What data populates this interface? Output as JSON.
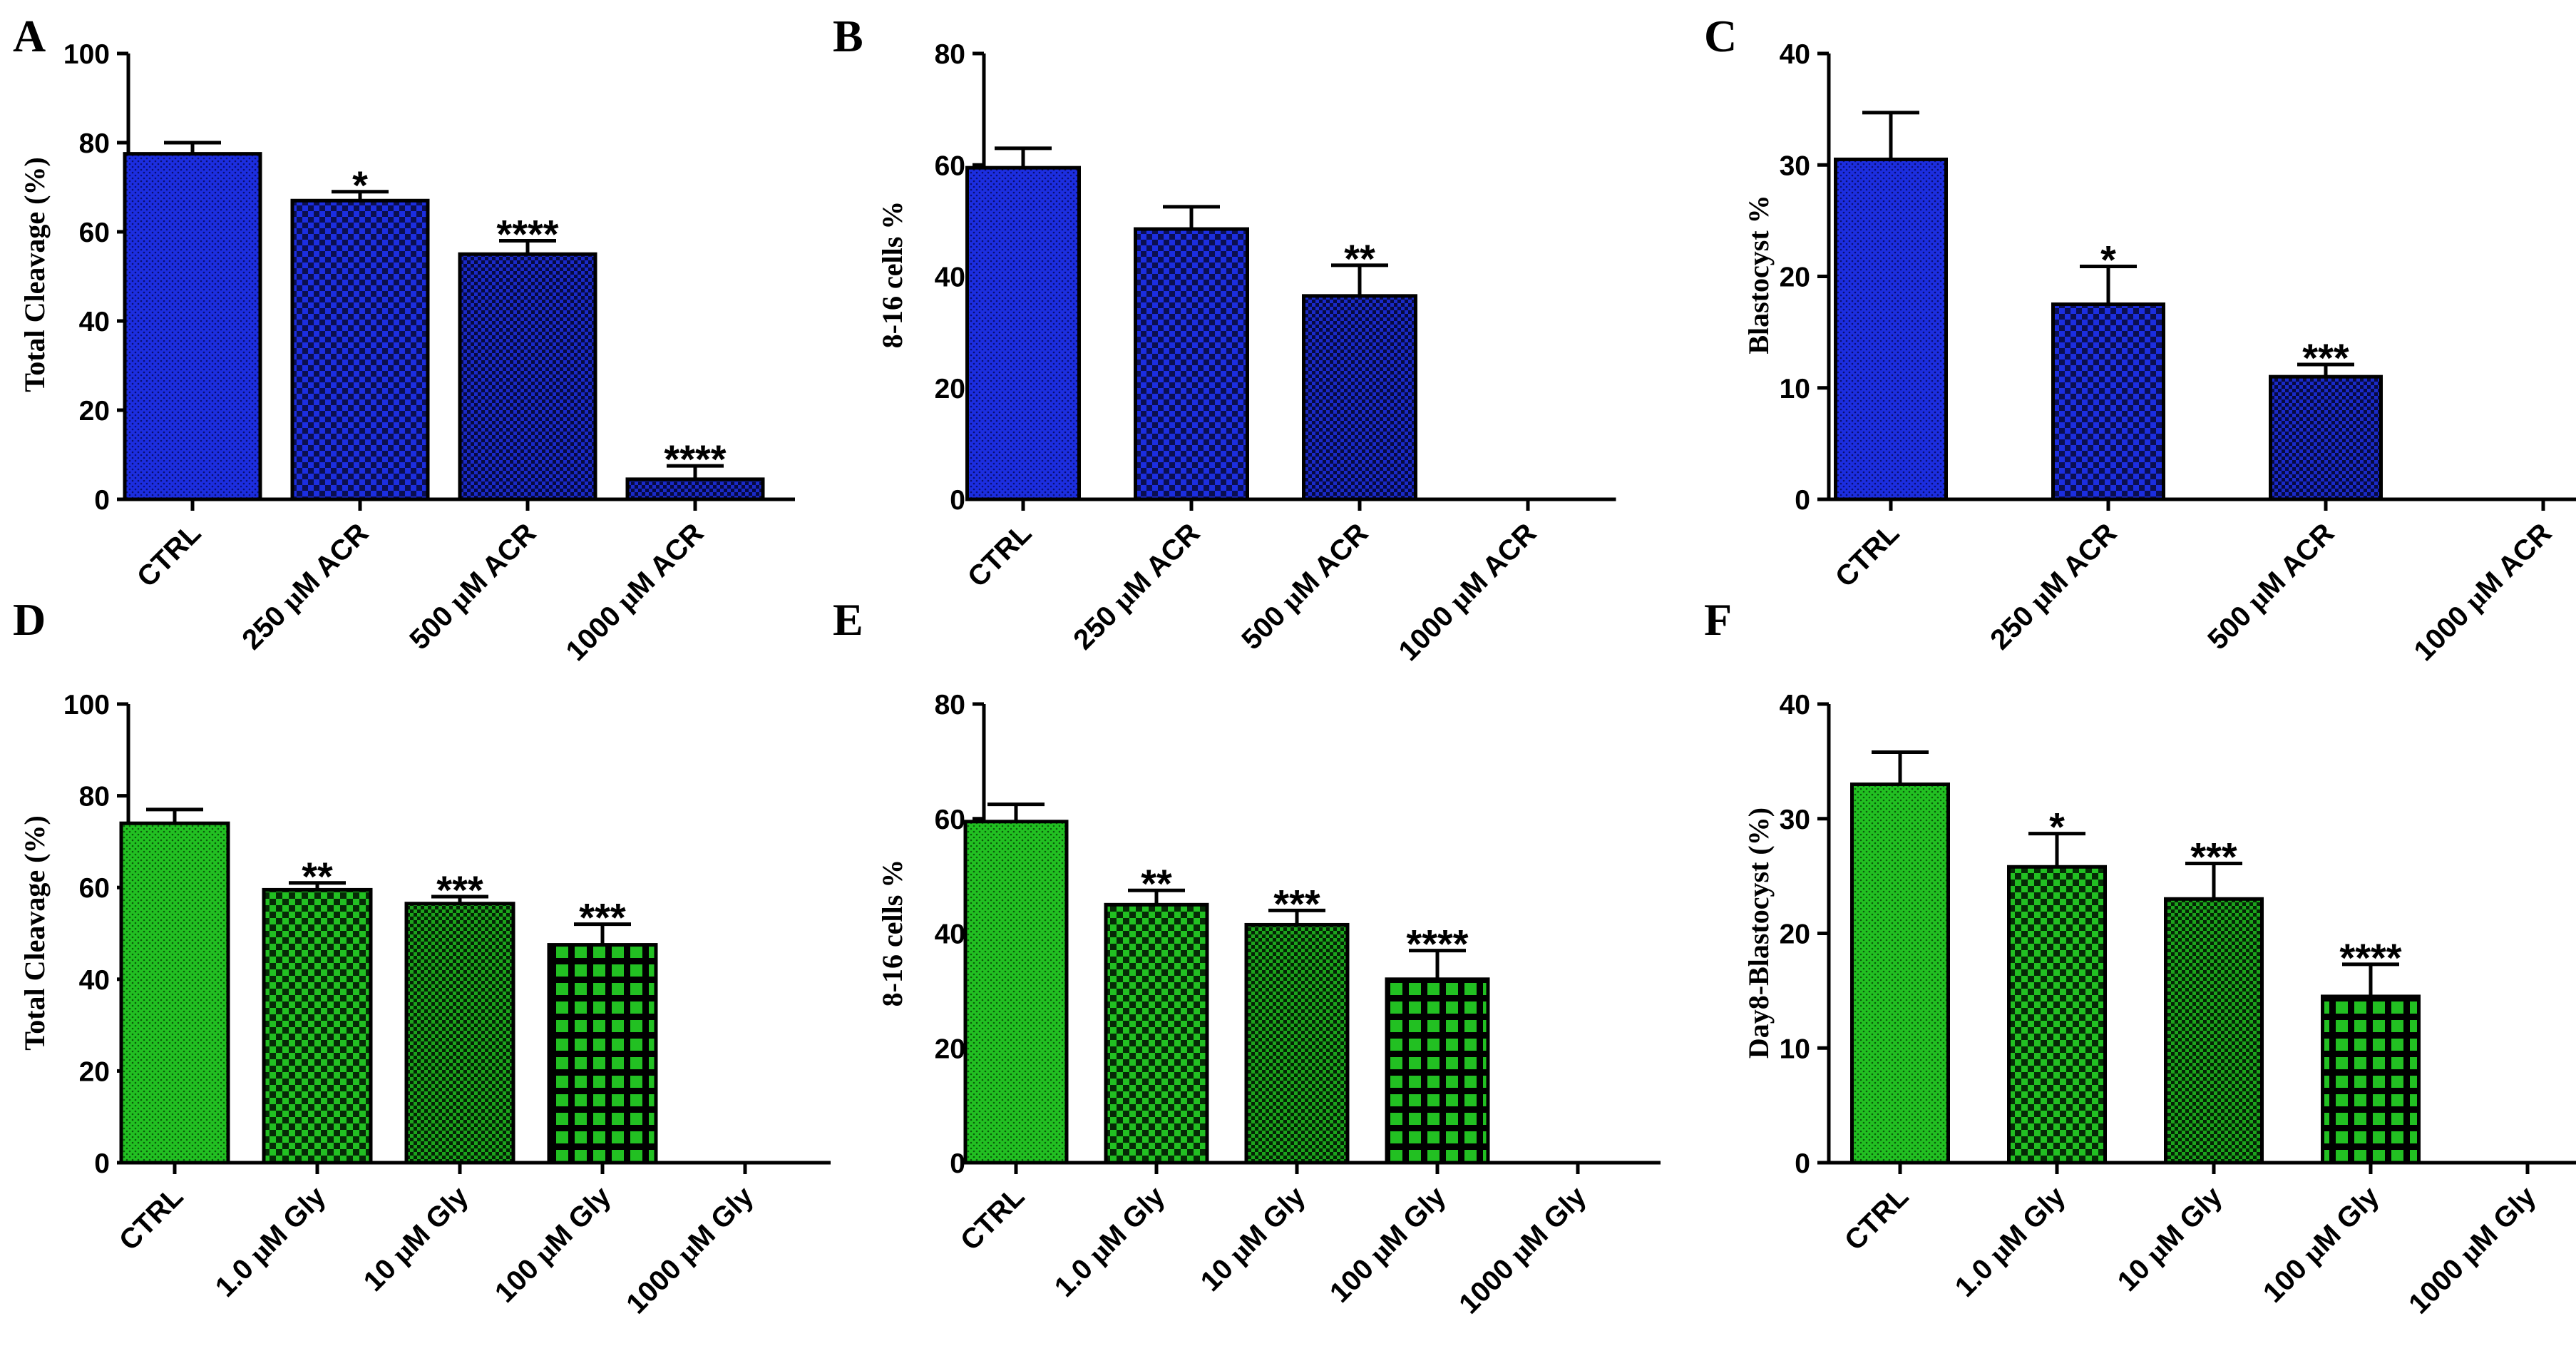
{
  "chart_data": [
    {
      "panel": "A",
      "type": "bar",
      "title": "",
      "xlabel": "",
      "ylabel": "Total Cleavage (%)",
      "ylim": [
        0,
        100
      ],
      "yticks": [
        0,
        20,
        40,
        60,
        80,
        100
      ],
      "categories": [
        "CTRL",
        "250 µM ACR",
        "500 µM ACR",
        "1000 µM ACR"
      ],
      "values": [
        77.5,
        67,
        55,
        4.5
      ],
      "errors": [
        2.5,
        2,
        3,
        3
      ],
      "significance": [
        "",
        "*",
        "****",
        "****"
      ],
      "bar_color": "#1c2ee0",
      "pattern": [
        "dots",
        "checker",
        "checker-fine",
        "checker-fine"
      ]
    },
    {
      "panel": "B",
      "type": "bar",
      "title": "",
      "xlabel": "",
      "ylabel": "8-16 cells %",
      "ylim": [
        0,
        80
      ],
      "yticks": [
        0,
        20,
        40,
        60,
        80
      ],
      "categories": [
        "CTRL",
        "250 µM ACR",
        "500 µM ACR",
        "1000 µM ACR"
      ],
      "values": [
        59.5,
        48.5,
        36.5,
        0
      ],
      "errors": [
        3.5,
        4,
        5.5,
        0
      ],
      "significance": [
        "",
        "",
        "**",
        ""
      ],
      "bar_color": "#1c2ee0",
      "pattern": [
        "dots",
        "checker",
        "checker-fine",
        "none"
      ]
    },
    {
      "panel": "C",
      "type": "bar",
      "title": "",
      "xlabel": "",
      "ylabel": "Blastocyst %",
      "ylim": [
        0,
        40
      ],
      "yticks": [
        0,
        10,
        20,
        30,
        40
      ],
      "categories": [
        "CTRL",
        "250 µM ACR",
        "500 µM ACR",
        "1000 µM ACR"
      ],
      "values": [
        30.5,
        17.5,
        11,
        0
      ],
      "errors": [
        4.2,
        3.4,
        1.1,
        0
      ],
      "significance": [
        "",
        "*",
        "***",
        ""
      ],
      "bar_color": "#1c2ee0",
      "pattern": [
        "dots",
        "checker",
        "checker-fine",
        "none"
      ]
    },
    {
      "panel": "D",
      "type": "bar",
      "title": "",
      "xlabel": "",
      "ylabel": "Total Cleavage (%)",
      "ylim": [
        0,
        100
      ],
      "yticks": [
        0,
        20,
        40,
        60,
        80,
        100
      ],
      "categories": [
        "CTRL",
        "1.0 µM Gly",
        "10 µM Gly",
        "100 µM Gly",
        "1000 µM Gly"
      ],
      "values": [
        74,
        59.5,
        56.5,
        47.5,
        0
      ],
      "errors": [
        3,
        1.5,
        1.5,
        4.5,
        0
      ],
      "significance": [
        "",
        "**",
        "***",
        "***",
        ""
      ],
      "bar_color": "#1dba1d",
      "pattern": [
        "dots",
        "checker",
        "checker-fine",
        "grid",
        "none"
      ]
    },
    {
      "panel": "E",
      "type": "bar",
      "title": "",
      "xlabel": "",
      "ylabel": "8-16 cells %",
      "ylim": [
        0,
        80
      ],
      "yticks": [
        0,
        20,
        40,
        60,
        80
      ],
      "categories": [
        "CTRL",
        "1.0 µM Gly",
        "10 µM Gly",
        "100 µM Gly",
        "1000 µM Gly"
      ],
      "values": [
        59.5,
        45,
        41.5,
        32,
        0
      ],
      "errors": [
        3,
        2.5,
        2.5,
        5,
        0
      ],
      "significance": [
        "",
        "**",
        "***",
        "****",
        ""
      ],
      "bar_color": "#1dba1d",
      "pattern": [
        "dots",
        "checker",
        "checker-fine",
        "grid",
        "none"
      ]
    },
    {
      "panel": "F",
      "type": "bar",
      "title": "",
      "xlabel": "",
      "ylabel": "Day8-Blastocyst (%)",
      "ylim": [
        0,
        40
      ],
      "yticks": [
        0,
        10,
        20,
        30,
        40
      ],
      "categories": [
        "CTRL",
        "1.0 µM Gly",
        "10 µM Gly",
        "100 µM Gly",
        "1000 µM Gly"
      ],
      "values": [
        33,
        25.8,
        23,
        14.5,
        0
      ],
      "errors": [
        2.8,
        2.9,
        3.1,
        2.8,
        0
      ],
      "significance": [
        "",
        "*",
        "***",
        "****",
        ""
      ],
      "bar_color": "#1dba1d",
      "pattern": [
        "dots",
        "checker",
        "checker-fine",
        "grid",
        "none"
      ]
    }
  ]
}
